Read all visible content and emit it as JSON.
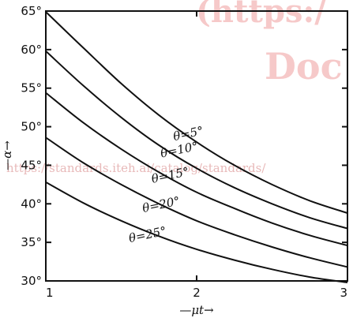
{
  "watermark": {
    "top_right": "(https:/",
    "right": "Doc",
    "url": "https://standards.iteh.ai/catalog/standards/"
  },
  "chart_data": {
    "type": "line",
    "title": "",
    "xlabel": "—μt→",
    "ylabel": "—α→",
    "xlim": [
      1,
      3
    ],
    "ylim": [
      30,
      65
    ],
    "x_ticks": [
      {
        "v": 1,
        "label": "1"
      },
      {
        "v": 2,
        "label": "2"
      },
      {
        "v": 3,
        "label": "3"
      }
    ],
    "y_ticks": [
      {
        "v": 30,
        "label": "30°"
      },
      {
        "v": 35,
        "label": "35°"
      },
      {
        "v": 40,
        "label": "40°"
      },
      {
        "v": 45,
        "label": "45°"
      },
      {
        "v": 50,
        "label": "50°"
      },
      {
        "v": 55,
        "label": "55°"
      },
      {
        "v": 60,
        "label": "60°"
      },
      {
        "v": 65,
        "label": "65°"
      }
    ],
    "grid": false,
    "series": [
      {
        "name": "θ=5°",
        "label_at": [
          1.95,
          48.6
        ],
        "points": [
          [
            1,
            64.9
          ],
          [
            1.25,
            60.2
          ],
          [
            1.5,
            55.6
          ],
          [
            1.75,
            51.5
          ],
          [
            2,
            48.0
          ],
          [
            2.25,
            45.0
          ],
          [
            2.5,
            42.5
          ],
          [
            2.75,
            40.4
          ],
          [
            3,
            38.8
          ]
        ]
      },
      {
        "name": "θ=10°",
        "label_at": [
          1.89,
          46.5
        ],
        "points": [
          [
            1,
            59.8
          ],
          [
            1.25,
            55.3
          ],
          [
            1.5,
            51.2
          ],
          [
            1.75,
            47.6
          ],
          [
            2,
            44.6
          ],
          [
            2.25,
            42.1
          ],
          [
            2.5,
            40.0
          ],
          [
            2.75,
            38.2
          ],
          [
            3,
            36.8
          ]
        ]
      },
      {
        "name": "θ=15°",
        "label_at": [
          1.83,
          43.2
        ],
        "points": [
          [
            1,
            54.4
          ],
          [
            1.25,
            50.5
          ],
          [
            1.5,
            47.1
          ],
          [
            1.75,
            44.1
          ],
          [
            2,
            41.5
          ],
          [
            2.25,
            39.4
          ],
          [
            2.5,
            37.5
          ],
          [
            2.75,
            35.9
          ],
          [
            3,
            34.6
          ]
        ]
      },
      {
        "name": "θ=20°",
        "label_at": [
          1.77,
          39.4
        ],
        "points": [
          [
            1,
            48.6
          ],
          [
            1.25,
            45.3
          ],
          [
            1.5,
            42.5
          ],
          [
            1.75,
            40.0
          ],
          [
            2,
            37.8
          ],
          [
            2.25,
            36.0
          ],
          [
            2.5,
            34.4
          ],
          [
            2.75,
            33.0
          ],
          [
            3,
            31.8
          ]
        ]
      },
      {
        "name": "θ=25°",
        "label_at": [
          1.68,
          35.5
        ],
        "points": [
          [
            1,
            42.8
          ],
          [
            1.25,
            40.1
          ],
          [
            1.5,
            37.8
          ],
          [
            1.75,
            35.8
          ],
          [
            2,
            34.1
          ],
          [
            2.25,
            32.7
          ],
          [
            2.5,
            31.5
          ],
          [
            2.75,
            30.5
          ],
          [
            3,
            29.8
          ]
        ]
      }
    ]
  }
}
